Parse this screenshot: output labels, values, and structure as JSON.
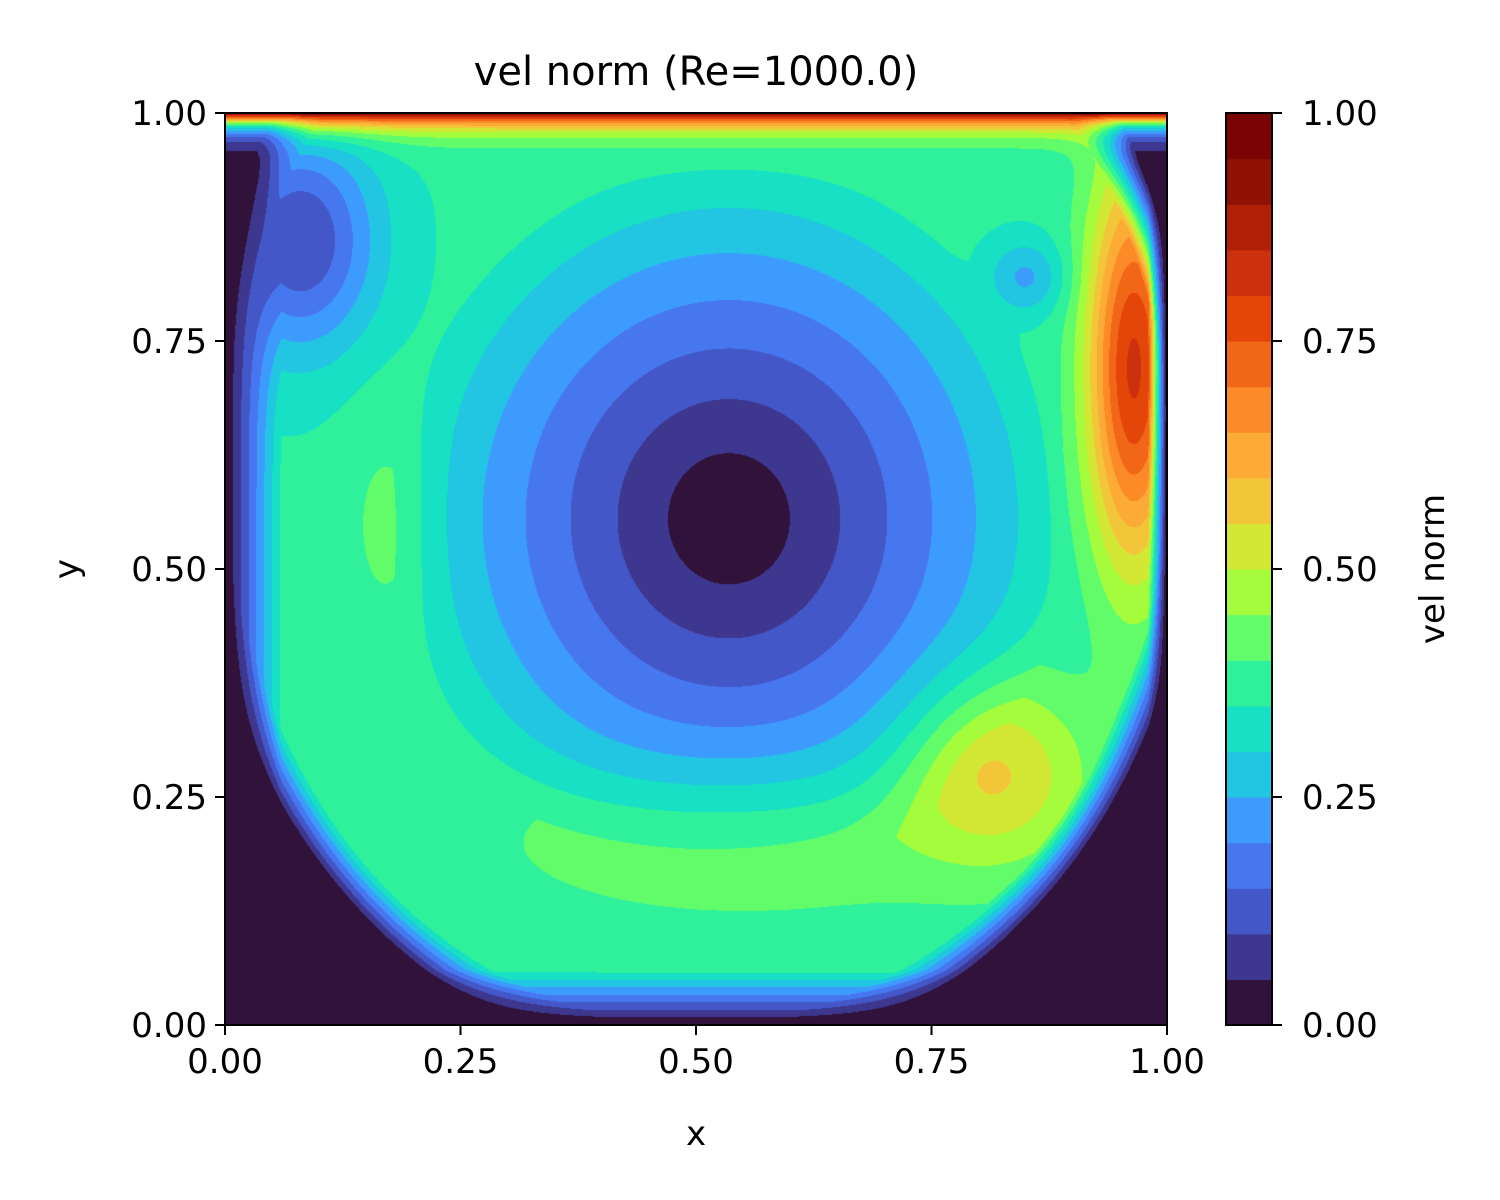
{
  "chart_data": {
    "type": "heatmap",
    "subtype": "filled-contour",
    "title": "vel norm (Re=1000.0)",
    "xlabel": "x",
    "ylabel": "y",
    "xlim": [
      0.0,
      1.0
    ],
    "ylim": [
      0.0,
      1.0
    ],
    "xticks": [
      "0.00",
      "0.25",
      "0.50",
      "0.75",
      "1.00"
    ],
    "yticks": [
      "0.00",
      "0.25",
      "0.50",
      "0.75",
      "1.00"
    ],
    "grid": false,
    "colormap": "turbo",
    "colorbar": {
      "label": "vel norm",
      "range": [
        0.0,
        1.0
      ],
      "ticks": [
        "0.00",
        "0.25",
        "0.50",
        "0.75",
        "1.00"
      ],
      "levels": [
        0.0,
        0.05,
        0.1,
        0.15,
        0.2,
        0.25,
        0.3,
        0.35,
        0.4,
        0.45,
        0.5,
        0.55,
        0.6,
        0.65,
        0.7,
        0.75,
        0.8,
        0.85,
        0.9,
        0.95,
        1.0
      ],
      "colors": [
        "#30123b",
        "#3e378f",
        "#4457c8",
        "#4777ef",
        "#3e9bfe",
        "#22c5e2",
        "#18e0c4",
        "#2ff19c",
        "#62fc6b",
        "#a4fc3c",
        "#d3e835",
        "#f3c63a",
        "#fcab36",
        "#fc8a27",
        "#f26617",
        "#e4460a",
        "#cd300d",
        "#b11f07",
        "#8f1205",
        "#7a0403"
      ]
    },
    "field": {
      "name": "vel norm",
      "description_of_regions": [
        {
          "region": "lid (top row)",
          "approx_value": 1.0
        },
        {
          "region": "primary vortex core",
          "x": 0.53,
          "y": 0.56,
          "approx_value": 0.02
        },
        {
          "region": "right wall jet",
          "x": 0.96,
          "y": 0.72,
          "approx_value": 0.7
        },
        {
          "region": "bottom return flow",
          "x": 0.47,
          "y": 0.19,
          "approx_value": 0.38
        },
        {
          "region": "left side band",
          "x": 0.17,
          "y": 0.56,
          "approx_value": 0.37
        },
        {
          "region": "bottom-left corner",
          "x": 0.03,
          "y": 0.03,
          "approx_value": 0.0
        },
        {
          "region": "bottom-right corner",
          "x": 0.97,
          "y": 0.03,
          "approx_value": 0.0
        }
      ]
    }
  }
}
